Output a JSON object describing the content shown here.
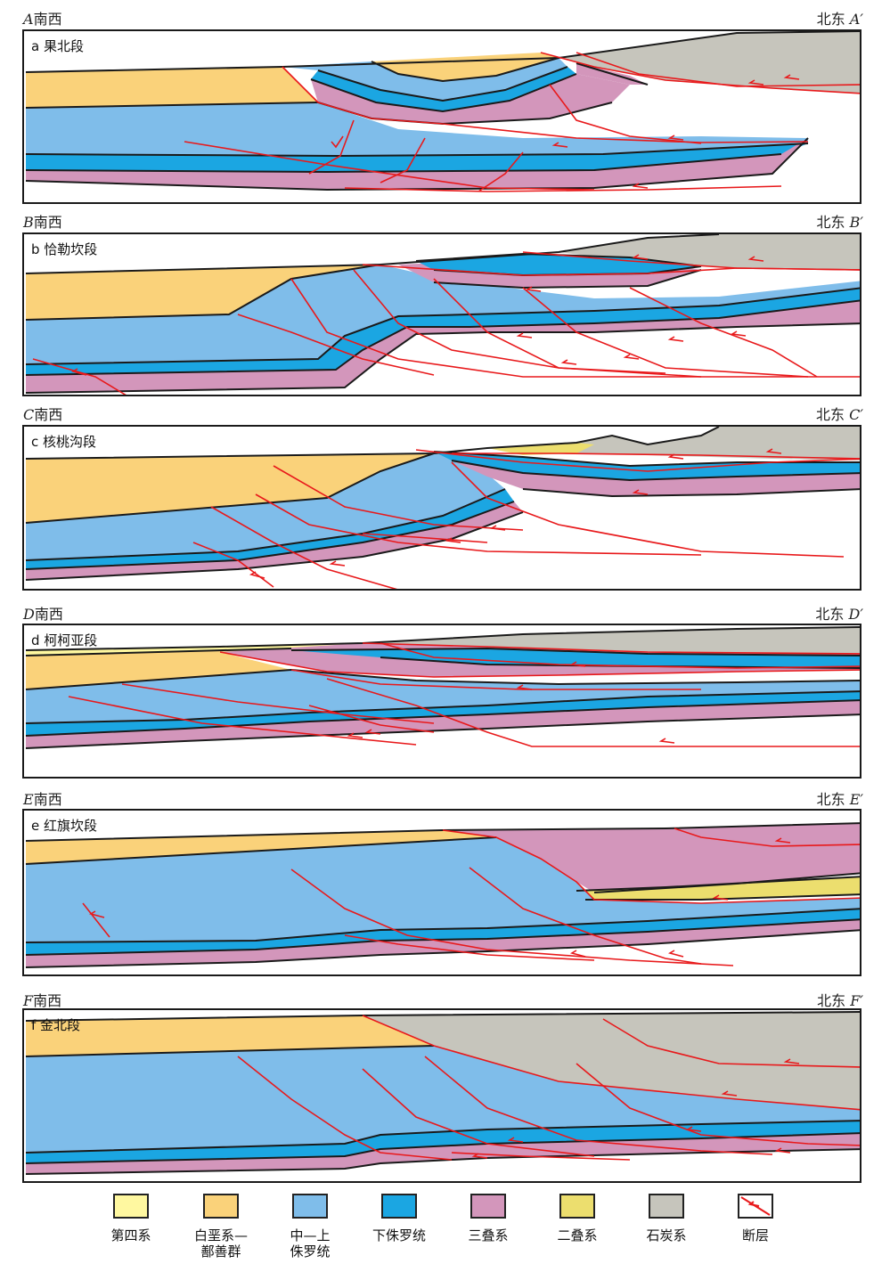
{
  "colors": {
    "quaternary": "#FFF8A0",
    "cretaceous": "#FAD27A",
    "mid_upper_jurassic": "#7FBDEA",
    "lower_jurassic": "#1BA6E2",
    "triassic": "#D396BB",
    "permian": "#ECDE6E",
    "carboniferous": "#C6C5BC",
    "fault": "#E8191B"
  },
  "panels": [
    {
      "letter": "A",
      "letter_prime": "A′",
      "sw": "南西",
      "ne": "北东",
      "segment": "a 果北段"
    },
    {
      "letter": "B",
      "letter_prime": "B′",
      "sw": "南西",
      "ne": "北东",
      "segment": "b 恰勒坎段"
    },
    {
      "letter": "C",
      "letter_prime": "C′",
      "sw": "南西",
      "ne": "北东",
      "segment": "c 核桃沟段"
    },
    {
      "letter": "D",
      "letter_prime": "D′",
      "sw": "南西",
      "ne": "北东",
      "segment": "d 柯柯亚段"
    },
    {
      "letter": "E",
      "letter_prime": "E′",
      "sw": "南西",
      "ne": "北东",
      "segment": "e 红旗坎段"
    },
    {
      "letter": "F",
      "letter_prime": "F′",
      "sw": "南西",
      "ne": "北东",
      "segment": "f 金北段"
    }
  ],
  "legend": [
    {
      "key": "quaternary",
      "label": "第四系",
      "label2": ""
    },
    {
      "key": "cretaceous",
      "label": "白垩系—",
      "label2": "鄯善群"
    },
    {
      "key": "mid_upper_jurassic",
      "label": "中—上",
      "label2": "侏罗统"
    },
    {
      "key": "lower_jurassic",
      "label": "下侏罗统",
      "label2": ""
    },
    {
      "key": "triassic",
      "label": "三叠系",
      "label2": ""
    },
    {
      "key": "permian",
      "label": "二叠系",
      "label2": ""
    },
    {
      "key": "carboniferous",
      "label": "石炭系",
      "label2": ""
    },
    {
      "key": "fault",
      "label": "断层",
      "label2": ""
    }
  ]
}
